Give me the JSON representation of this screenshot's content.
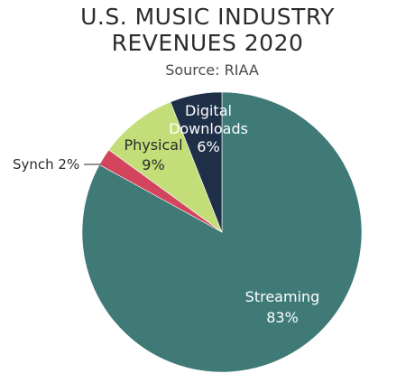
{
  "chart_data": {
    "type": "pie",
    "title_lines": [
      "U.S. MUSIC INDUSTRY",
      "REVENUES 2020"
    ],
    "subtitle": "Source: RIAA",
    "slices": [
      {
        "label": "Streaming",
        "value": 83,
        "value_label": "83%",
        "color": "#3f7a77"
      },
      {
        "label": "Synch",
        "value": 2,
        "value_label": "2%",
        "color": "#d2455d"
      },
      {
        "label": "Physical",
        "value": 9,
        "value_label": "9%",
        "color": "#c3de78"
      },
      {
        "label": "Digital Downloads",
        "value": 6,
        "value_label": "6%",
        "color": "#1f2f48"
      }
    ],
    "synch_label_text": "Synch 2%",
    "digital_label_lines": [
      "Digital",
      "Downloads",
      "6%"
    ]
  }
}
